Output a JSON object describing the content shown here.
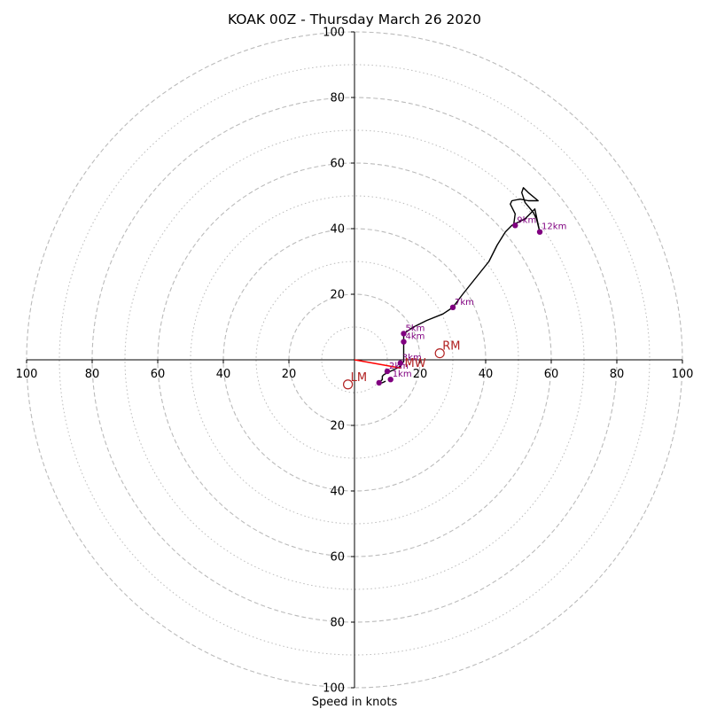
{
  "chart_data": {
    "type": "hodograph",
    "title": "KOAK 00Z - Thursday March 26 2020",
    "xlabel": "Speed in knots",
    "range": [
      -100,
      100
    ],
    "ring_major": [
      20,
      40,
      60,
      80,
      100
    ],
    "ring_minor": [
      10,
      30,
      50,
      70,
      90
    ],
    "axis_ticks": [
      20,
      40,
      60,
      80,
      100
    ],
    "colors": {
      "grid": "#bbbbbb",
      "trace": "#000000",
      "height_marker": "#800080",
      "motion": "#b22222",
      "shear_vector": "#ff0000",
      "axis": "#000000"
    },
    "trace": [
      [
        9.5,
        -6.5
      ],
      [
        8.5,
        -7
      ],
      [
        7.5,
        -7
      ],
      [
        8.5,
        -6
      ],
      [
        8.5,
        -5
      ],
      [
        9,
        -4.5
      ],
      [
        10,
        -4
      ],
      [
        11,
        -3.5
      ],
      [
        13,
        -2.5
      ],
      [
        14,
        -2
      ],
      [
        15,
        -0.5
      ],
      [
        15,
        2
      ],
      [
        15,
        5.5
      ],
      [
        15,
        8
      ],
      [
        18,
        10
      ],
      [
        22,
        12
      ],
      [
        27,
        14
      ],
      [
        30,
        16
      ],
      [
        33,
        20
      ],
      [
        37,
        25
      ],
      [
        41,
        30
      ],
      [
        43.5,
        35
      ],
      [
        46,
        39
      ],
      [
        48,
        41
      ],
      [
        50,
        42
      ],
      [
        52,
        43
      ],
      [
        53,
        44
      ],
      [
        54,
        45
      ],
      [
        55,
        46
      ],
      [
        56.5,
        39
      ],
      [
        55.5,
        43
      ],
      [
        54.5,
        45
      ],
      [
        52,
        48
      ],
      [
        51,
        51
      ],
      [
        51.5,
        52.5
      ],
      [
        53,
        51
      ],
      [
        56,
        48.5
      ],
      [
        53,
        48.5
      ],
      [
        50.5,
        49
      ],
      [
        48,
        48.5
      ],
      [
        47.5,
        47.5
      ],
      [
        49,
        44.5
      ],
      [
        48.5,
        41
      ]
    ],
    "height_markers": [
      {
        "label": "1km",
        "u": 11,
        "v": -6
      },
      {
        "label": "2km",
        "u": 10,
        "v": -3.5
      },
      {
        "label": "3km",
        "u": 14,
        "v": -1
      },
      {
        "label": "4km",
        "u": 15,
        "v": 5.5
      },
      {
        "label": "5km",
        "u": 15,
        "v": 8
      },
      {
        "label": "7km",
        "u": 30,
        "v": 16
      },
      {
        "label": "9km",
        "u": 49,
        "v": 41
      },
      {
        "label": "12km",
        "u": 56.5,
        "v": 39
      },
      {
        "label": "",
        "u": 7.5,
        "v": -7
      }
    ],
    "storm_motion": [
      {
        "label": "RM",
        "u": 26,
        "v": 2
      },
      {
        "label": "LM",
        "u": -2,
        "v": -7.5
      }
    ],
    "mean_wind_label": "MW",
    "mean_wind_label_pos": {
      "u": 15,
      "v": -0.8
    },
    "shear_vector": {
      "from": [
        0,
        0
      ],
      "to": [
        14,
        -2.5
      ]
    }
  }
}
